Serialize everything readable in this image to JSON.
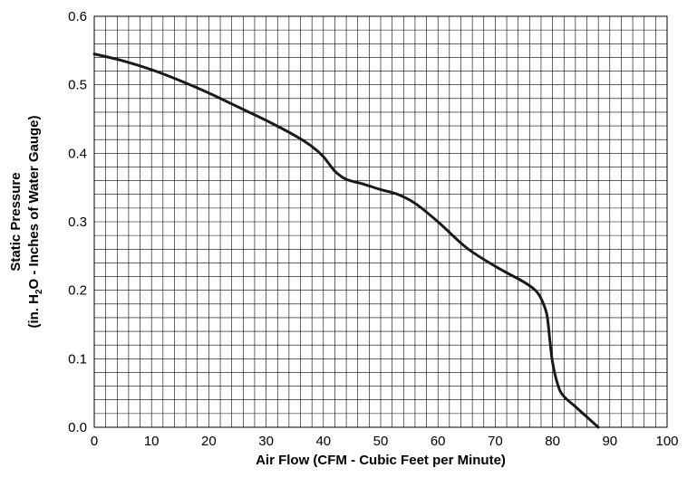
{
  "chart_data": {
    "type": "line",
    "title": "",
    "xlabel": "Air Flow (CFM - Cubic Feet per Minute)",
    "ylabel_line1": "Static Pressure",
    "ylabel_line2_pre": "(in. H",
    "ylabel_line2_sub": "2",
    "ylabel_line2_post": "O - Inches of Water Gauge)",
    "xlim": [
      0,
      100
    ],
    "ylim": [
      0,
      0.6
    ],
    "x_ticks": [
      "0",
      "10",
      "20",
      "30",
      "40",
      "50",
      "60",
      "70",
      "80",
      "90",
      "100"
    ],
    "y_ticks": [
      "0.0",
      "0.1",
      "0.2",
      "0.3",
      "0.4",
      "0.5",
      "0.6"
    ],
    "grid": true,
    "grid_minor_x_step": 2,
    "grid_minor_y_step": 0.02,
    "series": [
      {
        "color": "#1a1a1a",
        "x": [
          0,
          5,
          10,
          15,
          20,
          25,
          30,
          35,
          38,
          40,
          42,
          44,
          47,
          50,
          53,
          56,
          60,
          65,
          70,
          75,
          77,
          78,
          79,
          79.5,
          80,
          81,
          82,
          84,
          86,
          88
        ],
        "y": [
          0.545,
          0.535,
          0.522,
          0.506,
          0.488,
          0.468,
          0.448,
          0.426,
          0.41,
          0.395,
          0.374,
          0.362,
          0.355,
          0.347,
          0.34,
          0.327,
          0.3,
          0.262,
          0.235,
          0.212,
          0.2,
          0.188,
          0.165,
          0.13,
          0.095,
          0.06,
          0.045,
          0.03,
          0.015,
          0.0
        ]
      }
    ]
  }
}
